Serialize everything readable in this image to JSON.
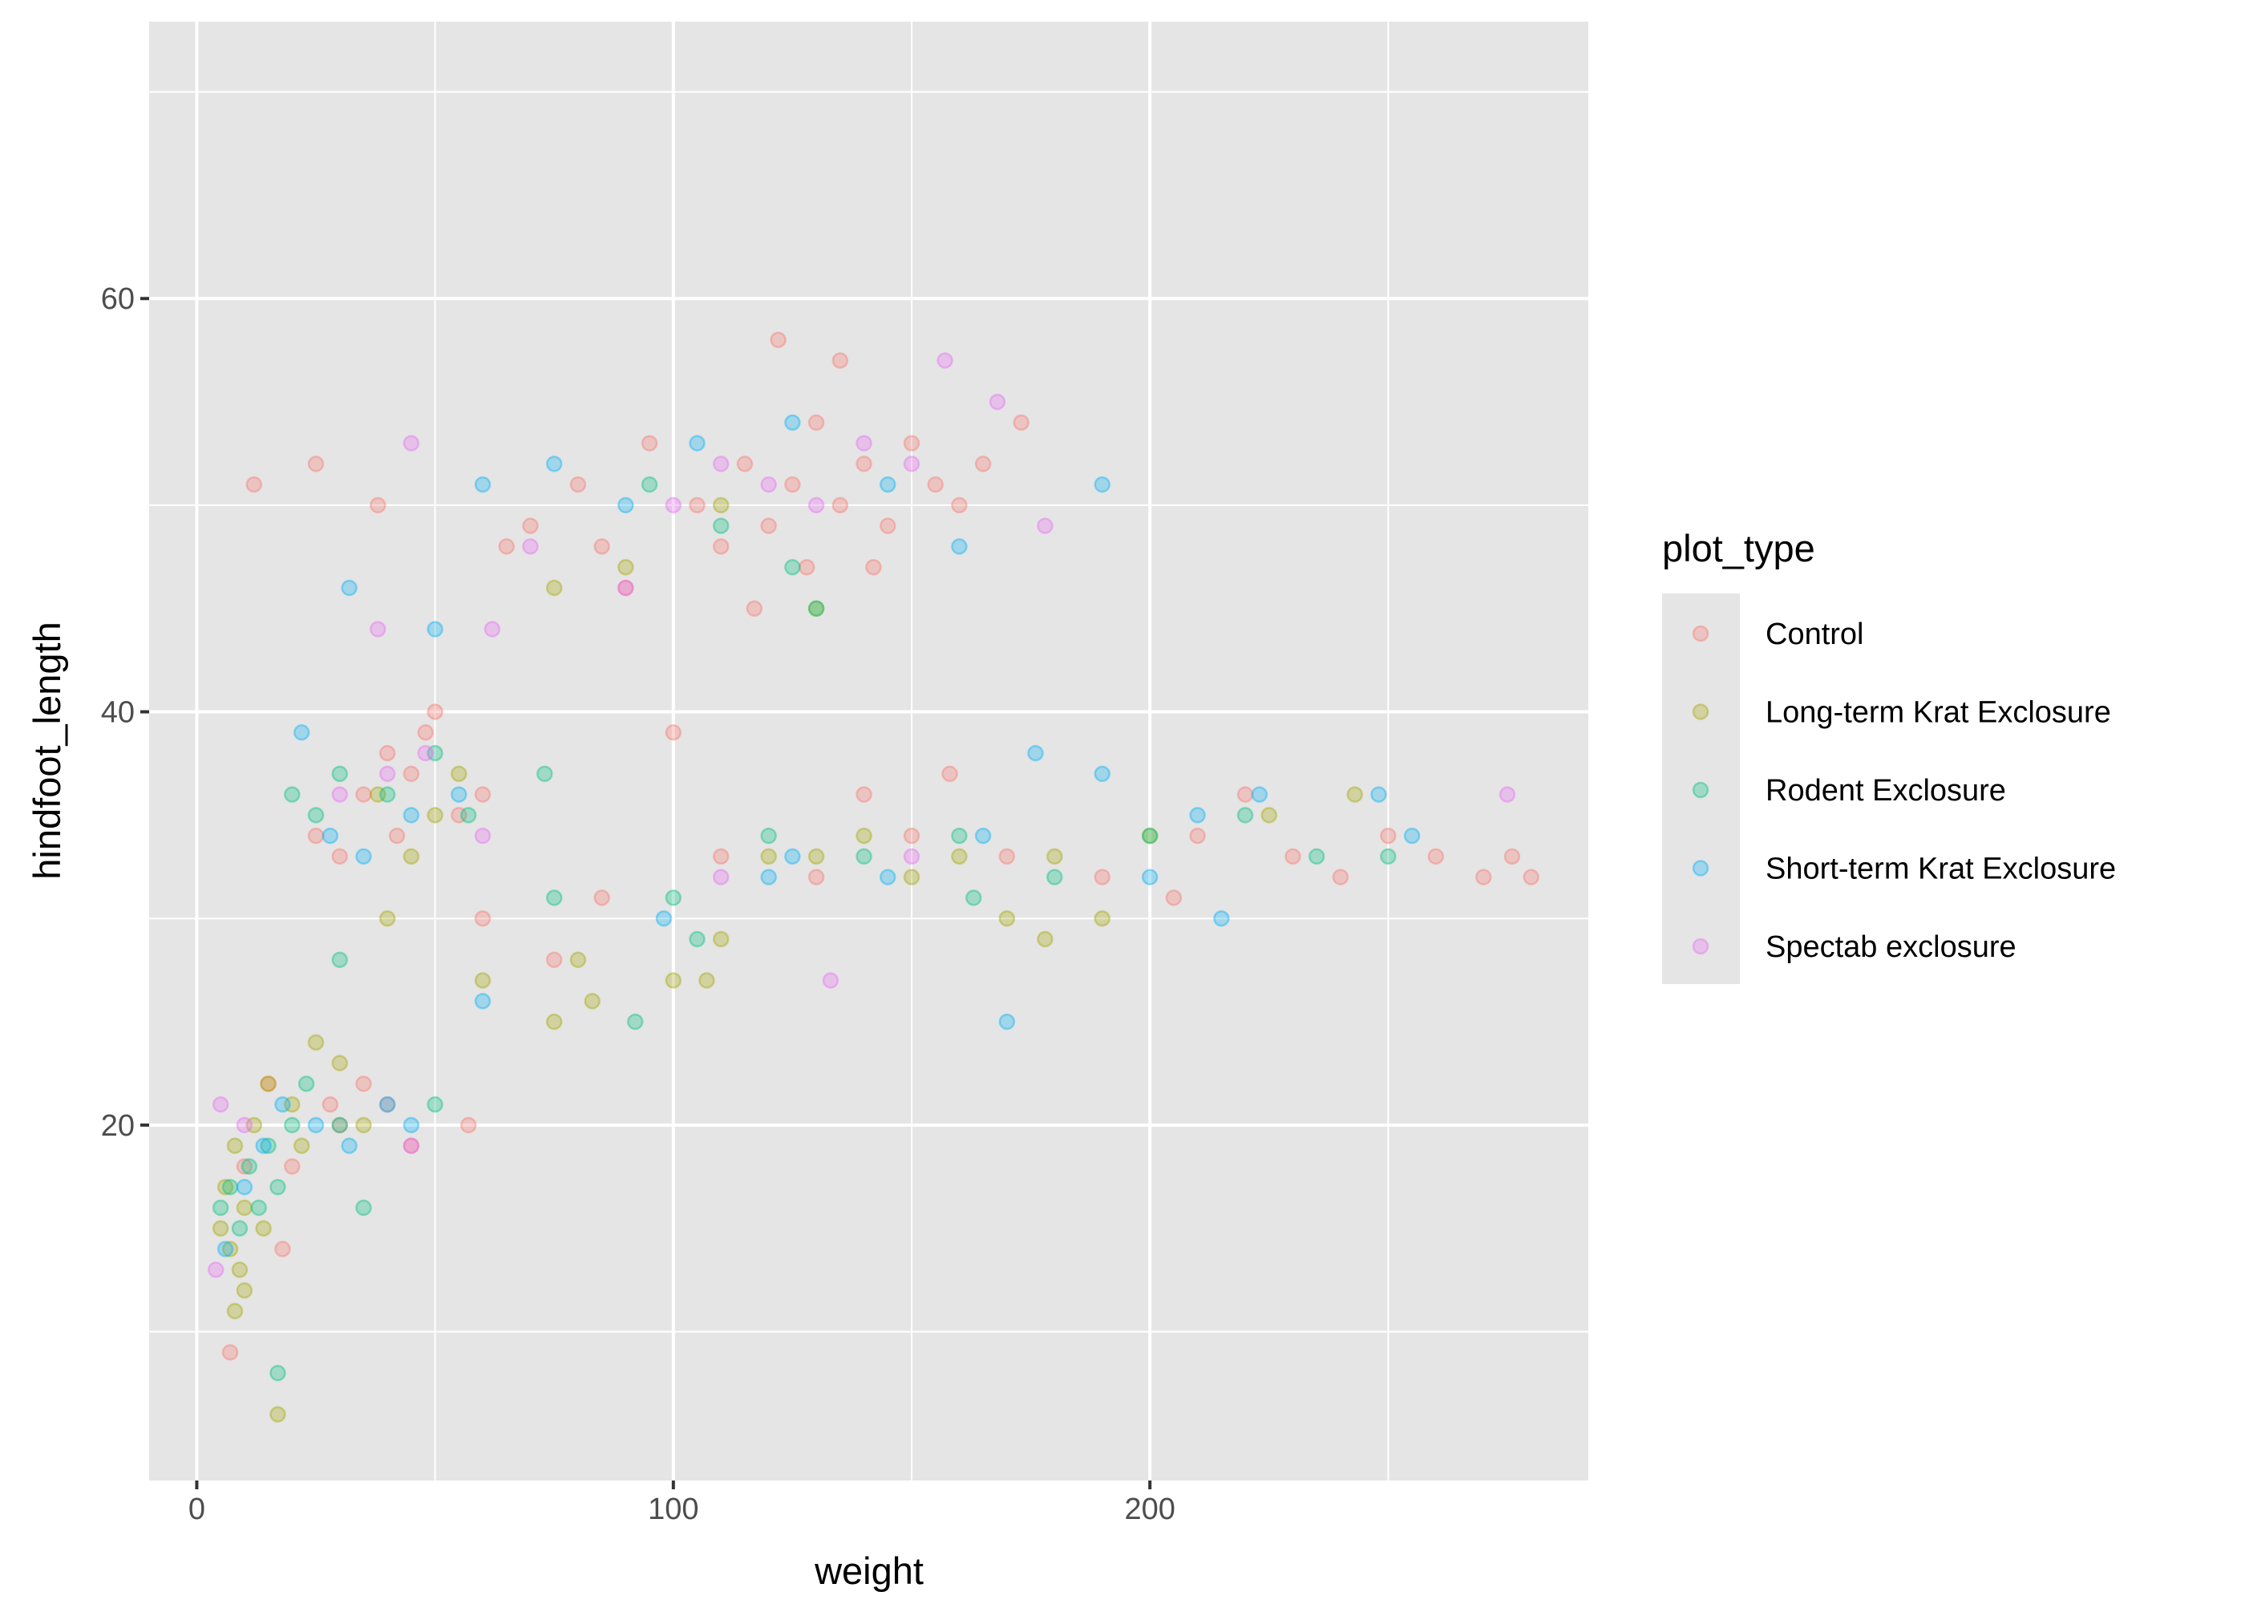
{
  "chart_data": {
    "type": "scatter",
    "title": "",
    "xlabel": "weight",
    "ylabel": "hindfoot_length",
    "xlim": [
      -10,
      292
    ],
    "ylim": [
      2.8,
      73.4
    ],
    "xticks": [
      0,
      100,
      200
    ],
    "xminor": [
      50,
      150,
      250
    ],
    "yticks": [
      20,
      40,
      60
    ],
    "yminor": [
      10,
      30,
      50,
      70
    ],
    "grid": true,
    "point_alpha": 0.3,
    "legend": {
      "title": "plot_type",
      "position": "right"
    },
    "series": [
      {
        "name": "Control",
        "color": "#F8766D",
        "points": [
          [
            12,
            51
          ],
          [
            25,
            52
          ],
          [
            38,
            50
          ],
          [
            7,
            9
          ],
          [
            30,
            20
          ],
          [
            35,
            22
          ],
          [
            40,
            21
          ],
          [
            45,
            19
          ],
          [
            20,
            18
          ],
          [
            28,
            21
          ],
          [
            25,
            34
          ],
          [
            35,
            36
          ],
          [
            45,
            37
          ],
          [
            50,
            40
          ],
          [
            40,
            38
          ],
          [
            55,
            35
          ],
          [
            30,
            33
          ],
          [
            60,
            36
          ],
          [
            48,
            39
          ],
          [
            42,
            34
          ],
          [
            100,
            39
          ],
          [
            95,
            53
          ],
          [
            105,
            50
          ],
          [
            110,
            48
          ],
          [
            115,
            52
          ],
          [
            120,
            49
          ],
          [
            125,
            51
          ],
          [
            130,
            54
          ],
          [
            135,
            50
          ],
          [
            140,
            52
          ],
          [
            145,
            49
          ],
          [
            150,
            53
          ],
          [
            155,
            51
          ],
          [
            160,
            50
          ],
          [
            165,
            52
          ],
          [
            122,
            58
          ],
          [
            135,
            57
          ],
          [
            173,
            54
          ],
          [
            85,
            48
          ],
          [
            90,
            46
          ],
          [
            80,
            51
          ],
          [
            70,
            49
          ],
          [
            65,
            48
          ],
          [
            110,
            33
          ],
          [
            130,
            32
          ],
          [
            150,
            34
          ],
          [
            170,
            33
          ],
          [
            190,
            32
          ],
          [
            210,
            34
          ],
          [
            230,
            33
          ],
          [
            250,
            34
          ],
          [
            260,
            33
          ],
          [
            270,
            32
          ],
          [
            276,
            33
          ],
          [
            280,
            32
          ],
          [
            140,
            36
          ],
          [
            158,
            37
          ],
          [
            85,
            31
          ],
          [
            75,
            28
          ],
          [
            60,
            30
          ],
          [
            57,
            20
          ],
          [
            18,
            14
          ],
          [
            10,
            18
          ],
          [
            15,
            22
          ],
          [
            128,
            47
          ],
          [
            142,
            47
          ],
          [
            117,
            45
          ],
          [
            220,
            36
          ],
          [
            240,
            32
          ],
          [
            205,
            31
          ]
        ]
      },
      {
        "name": "Long-term Krat Exclosure",
        "color": "#A3A500",
        "points": [
          [
            5,
            15
          ],
          [
            7,
            14
          ],
          [
            9,
            13
          ],
          [
            6,
            17
          ],
          [
            8,
            19
          ],
          [
            10,
            16
          ],
          [
            12,
            20
          ],
          [
            15,
            22
          ],
          [
            20,
            21
          ],
          [
            25,
            24
          ],
          [
            30,
            23
          ],
          [
            17,
            6
          ],
          [
            10,
            12
          ],
          [
            8,
            11
          ],
          [
            14,
            15
          ],
          [
            22,
            19
          ],
          [
            35,
            20
          ],
          [
            40,
            30
          ],
          [
            60,
            27
          ],
          [
            75,
            25
          ],
          [
            80,
            28
          ],
          [
            100,
            27
          ],
          [
            110,
            29
          ],
          [
            130,
            33
          ],
          [
            150,
            32
          ],
          [
            170,
            30
          ],
          [
            180,
            33
          ],
          [
            200,
            34
          ],
          [
            243,
            36
          ],
          [
            225,
            35
          ],
          [
            190,
            30
          ],
          [
            160,
            33
          ],
          [
            140,
            34
          ],
          [
            120,
            33
          ],
          [
            45,
            33
          ],
          [
            50,
            35
          ],
          [
            38,
            36
          ],
          [
            55,
            37
          ],
          [
            90,
            47
          ],
          [
            110,
            50
          ],
          [
            130,
            45
          ],
          [
            75,
            46
          ],
          [
            83,
            26
          ],
          [
            107,
            27
          ],
          [
            178,
            29
          ]
        ]
      },
      {
        "name": "Rodent Exclosure",
        "color": "#00BF7D",
        "points": [
          [
            5,
            16
          ],
          [
            7,
            17
          ],
          [
            9,
            15
          ],
          [
            11,
            18
          ],
          [
            13,
            16
          ],
          [
            15,
            19
          ],
          [
            17,
            17
          ],
          [
            20,
            20
          ],
          [
            23,
            22
          ],
          [
            30,
            20
          ],
          [
            35,
            16
          ],
          [
            50,
            21
          ],
          [
            17,
            8
          ],
          [
            20,
            36
          ],
          [
            25,
            35
          ],
          [
            30,
            37
          ],
          [
            40,
            36
          ],
          [
            50,
            38
          ],
          [
            57,
            35
          ],
          [
            73,
            37
          ],
          [
            92,
            25
          ],
          [
            100,
            31
          ],
          [
            120,
            34
          ],
          [
            140,
            33
          ],
          [
            160,
            34
          ],
          [
            180,
            32
          ],
          [
            200,
            34
          ],
          [
            220,
            35
          ],
          [
            235,
            33
          ],
          [
            250,
            33
          ],
          [
            130,
            45
          ],
          [
            110,
            49
          ],
          [
            95,
            51
          ],
          [
            125,
            47
          ],
          [
            75,
            31
          ],
          [
            105,
            29
          ],
          [
            163,
            31
          ],
          [
            30,
            28
          ]
        ]
      },
      {
        "name": "Short-term Krat Exclosure",
        "color": "#00B0F6",
        "points": [
          [
            6,
            14
          ],
          [
            10,
            17
          ],
          [
            14,
            19
          ],
          [
            18,
            21
          ],
          [
            25,
            20
          ],
          [
            32,
            19
          ],
          [
            40,
            21
          ],
          [
            45,
            20
          ],
          [
            22,
            39
          ],
          [
            28,
            34
          ],
          [
            35,
            33
          ],
          [
            45,
            35
          ],
          [
            55,
            36
          ],
          [
            60,
            26
          ],
          [
            32,
            46
          ],
          [
            50,
            44
          ],
          [
            60,
            51
          ],
          [
            75,
            52
          ],
          [
            90,
            50
          ],
          [
            105,
            53
          ],
          [
            125,
            54
          ],
          [
            145,
            51
          ],
          [
            160,
            48
          ],
          [
            190,
            51
          ],
          [
            120,
            32
          ],
          [
            145,
            32
          ],
          [
            165,
            34
          ],
          [
            176,
            38
          ],
          [
            190,
            37
          ],
          [
            210,
            35
          ],
          [
            223,
            36
          ],
          [
            248,
            36
          ],
          [
            255,
            34
          ],
          [
            170,
            25
          ],
          [
            200,
            32
          ],
          [
            215,
            30
          ],
          [
            125,
            33
          ],
          [
            98,
            30
          ]
        ]
      },
      {
        "name": "Spectab exclosure",
        "color": "#E76BF3",
        "points": [
          [
            4,
            13
          ],
          [
            5,
            21
          ],
          [
            10,
            20
          ],
          [
            45,
            19
          ],
          [
            30,
            36
          ],
          [
            40,
            37
          ],
          [
            48,
            38
          ],
          [
            60,
            34
          ],
          [
            45,
            53
          ],
          [
            38,
            44
          ],
          [
            62,
            44
          ],
          [
            70,
            48
          ],
          [
            90,
            46
          ],
          [
            100,
            50
          ],
          [
            110,
            52
          ],
          [
            120,
            51
          ],
          [
            130,
            50
          ],
          [
            140,
            53
          ],
          [
            150,
            52
          ],
          [
            157,
            57
          ],
          [
            168,
            55
          ],
          [
            178,
            49
          ],
          [
            133,
            27
          ],
          [
            275,
            36
          ],
          [
            150,
            33
          ],
          [
            110,
            32
          ]
        ]
      }
    ]
  }
}
